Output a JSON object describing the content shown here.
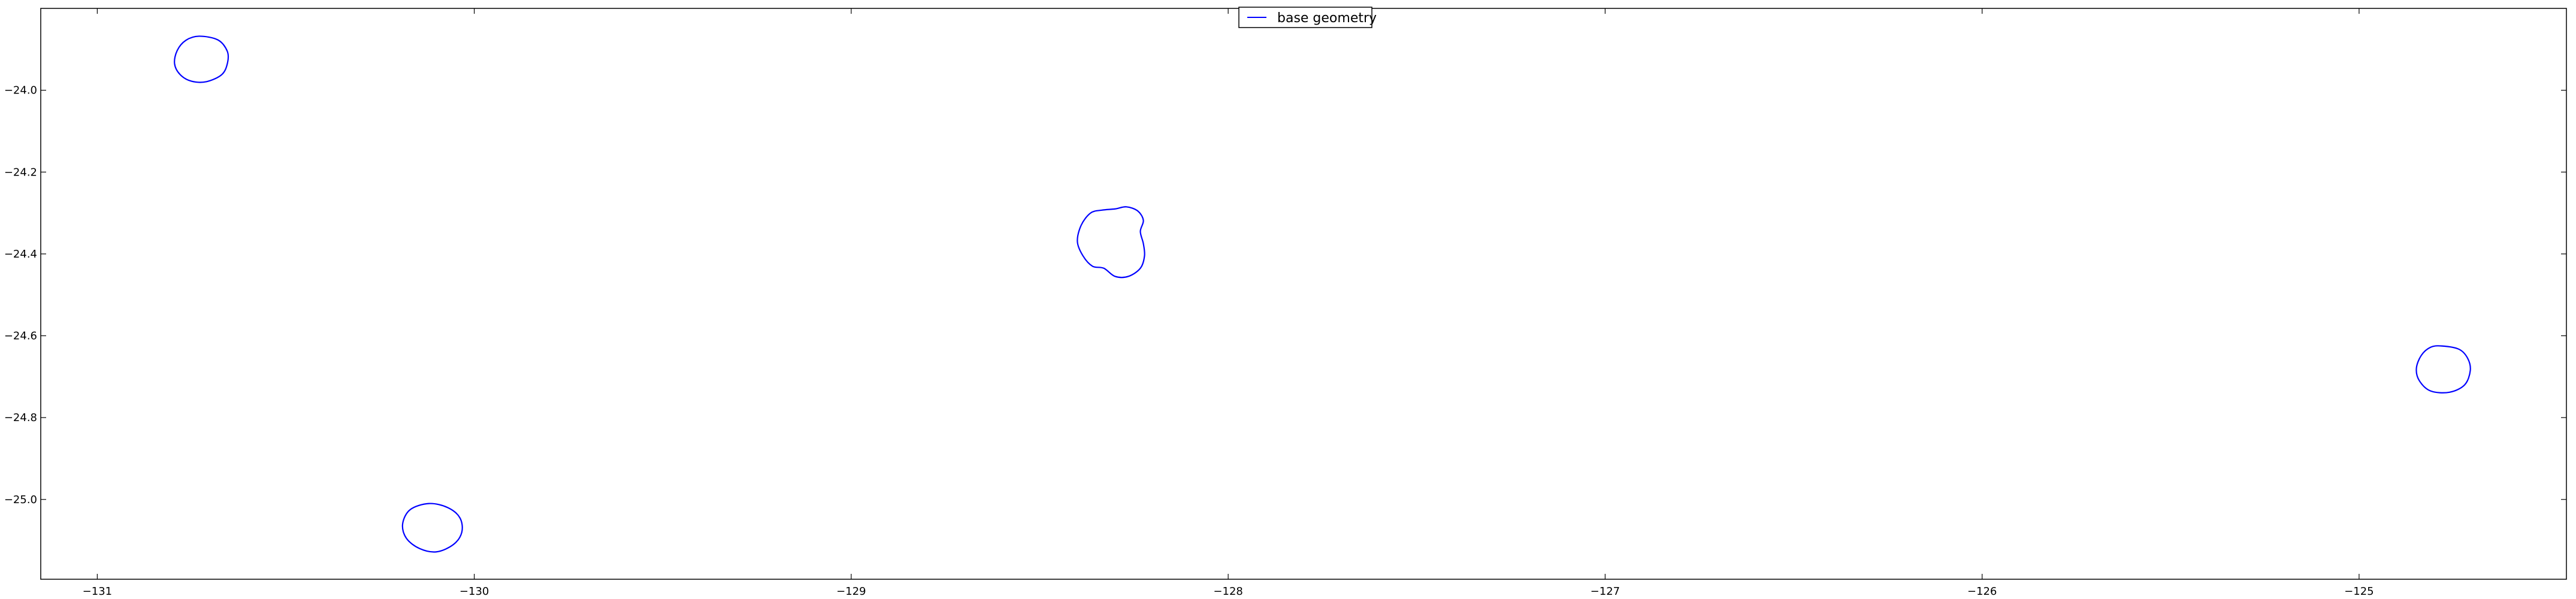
{
  "chart_data": {
    "type": "line",
    "title": "",
    "xlabel": "",
    "ylabel": "",
    "xlim": [
      -131.15,
      -124.45
    ],
    "ylim": [
      -25.195,
      -23.8
    ],
    "x_ticks": [
      {
        "value": -131,
        "label": "−131"
      },
      {
        "value": -130,
        "label": "−130"
      },
      {
        "value": -129,
        "label": "−129"
      },
      {
        "value": -128,
        "label": "−128"
      },
      {
        "value": -127,
        "label": "−127"
      },
      {
        "value": -126,
        "label": "−126"
      },
      {
        "value": -125,
        "label": "−125"
      }
    ],
    "y_ticks": [
      {
        "value": -24.0,
        "label": "−24.0"
      },
      {
        "value": -24.2,
        "label": "−24.2"
      },
      {
        "value": -24.4,
        "label": "−24.4"
      },
      {
        "value": -24.6,
        "label": "−24.6"
      },
      {
        "value": -24.8,
        "label": "−24.8"
      },
      {
        "value": -25.0,
        "label": "−25.0"
      }
    ],
    "grid": false,
    "legend": {
      "position": "upper-center",
      "entries": [
        "base geometry"
      ]
    },
    "series": [
      {
        "name": "base geometry",
        "color": "#0000ff",
        "shapes": [
          {
            "points": [
              [
                -130.73,
                -23.868
              ],
              [
                -130.68,
                -23.877
              ],
              [
                -130.655,
                -23.905
              ],
              [
                -130.655,
                -23.935
              ],
              [
                -130.67,
                -23.962
              ],
              [
                -130.71,
                -23.979
              ],
              [
                -130.75,
                -23.978
              ],
              [
                -130.78,
                -23.962
              ],
              [
                -130.795,
                -23.935
              ],
              [
                -130.788,
                -23.903
              ],
              [
                -130.765,
                -23.878
              ],
              [
                -130.73,
                -23.868
              ]
            ]
          },
          {
            "points": [
              [
                -128.27,
                -24.285
              ],
              [
                -128.24,
                -24.295
              ],
              [
                -128.225,
                -24.318
              ],
              [
                -128.233,
                -24.345
              ],
              [
                -128.225,
                -24.375
              ],
              [
                -128.222,
                -24.405
              ],
              [
                -128.233,
                -24.435
              ],
              [
                -128.265,
                -24.455
              ],
              [
                -128.3,
                -24.455
              ],
              [
                -128.33,
                -24.435
              ],
              [
                -128.36,
                -24.43
              ],
              [
                -128.385,
                -24.405
              ],
              [
                -128.4,
                -24.37
              ],
              [
                -128.39,
                -24.33
              ],
              [
                -128.365,
                -24.3
              ],
              [
                -128.335,
                -24.293
              ],
              [
                -128.3,
                -24.29
              ],
              [
                -128.27,
                -24.285
              ]
            ]
          },
          {
            "points": [
              [
                -130.12,
                -25.01
              ],
              [
                -130.07,
                -25.02
              ],
              [
                -130.038,
                -25.045
              ],
              [
                -130.033,
                -25.08
              ],
              [
                -130.055,
                -25.11
              ],
              [
                -130.1,
                -25.128
              ],
              [
                -130.145,
                -25.12
              ],
              [
                -130.18,
                -25.095
              ],
              [
                -130.19,
                -25.06
              ],
              [
                -130.17,
                -25.025
              ],
              [
                -130.12,
                -25.01
              ]
            ]
          },
          {
            "points": [
              [
                -124.78,
                -24.625
              ],
              [
                -124.735,
                -24.633
              ],
              [
                -124.712,
                -24.655
              ],
              [
                -124.705,
                -24.685
              ],
              [
                -124.72,
                -24.72
              ],
              [
                -124.76,
                -24.738
              ],
              [
                -124.81,
                -24.735
              ],
              [
                -124.84,
                -24.71
              ],
              [
                -124.848,
                -24.68
              ],
              [
                -124.835,
                -24.648
              ],
              [
                -124.81,
                -24.628
              ],
              [
                -124.78,
                -24.625
              ]
            ]
          }
        ]
      }
    ]
  }
}
